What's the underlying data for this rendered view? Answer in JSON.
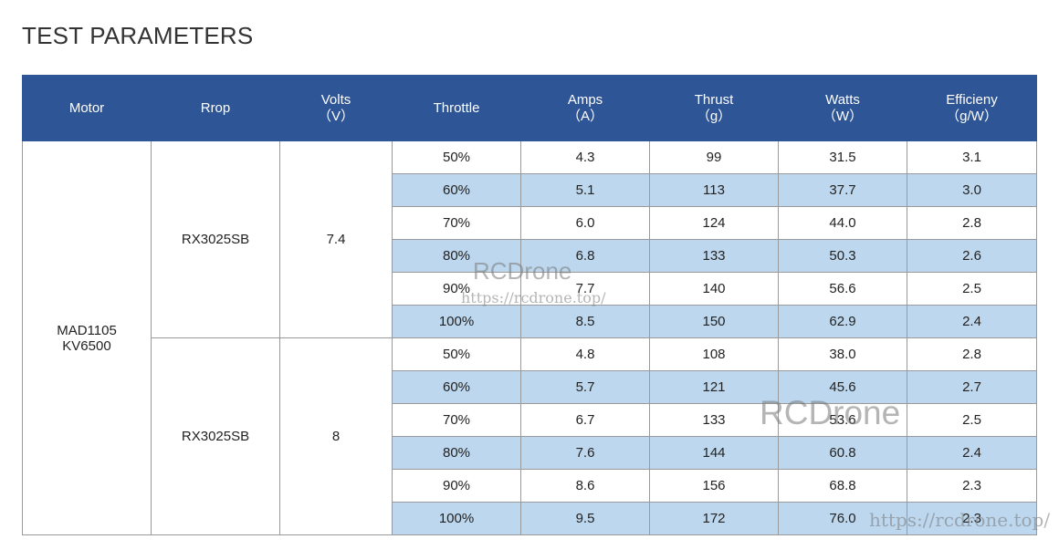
{
  "title": "TEST PARAMETERS",
  "table": {
    "header": [
      {
        "label": "Motor"
      },
      {
        "label": "Rrop"
      },
      {
        "label": "Volts",
        "unit": "（V）"
      },
      {
        "label": "Throttle"
      },
      {
        "label": "Amps",
        "unit": "（A）"
      },
      {
        "label": "Thrust",
        "unit": "（g）"
      },
      {
        "label": "Watts",
        "unit": "（W）"
      },
      {
        "label": "Efficieny",
        "unit": "（g/W）"
      }
    ],
    "motor": [
      "MAD1105",
      "KV6500"
    ],
    "groups": [
      {
        "prop": "RX3025SB",
        "volts": "7.4",
        "rows": [
          [
            "50%",
            "4.3",
            "99",
            "31.5",
            "3.1"
          ],
          [
            "60%",
            "5.1",
            "113",
            "37.7",
            "3.0"
          ],
          [
            "70%",
            "6.0",
            "124",
            "44.0",
            "2.8"
          ],
          [
            "80%",
            "6.8",
            "133",
            "50.3",
            "2.6"
          ],
          [
            "90%",
            "7.7",
            "140",
            "56.6",
            "2.5"
          ],
          [
            "100%",
            "8.5",
            "150",
            "62.9",
            "2.4"
          ]
        ]
      },
      {
        "prop": "RX3025SB",
        "volts": "8",
        "rows": [
          [
            "50%",
            "4.8",
            "108",
            "38.0",
            "2.8"
          ],
          [
            "60%",
            "5.7",
            "121",
            "45.6",
            "2.7"
          ],
          [
            "70%",
            "6.7",
            "133",
            "53.6",
            "2.5"
          ],
          [
            "80%",
            "7.6",
            "144",
            "60.8",
            "2.4"
          ],
          [
            "90%",
            "8.6",
            "156",
            "68.8",
            "2.3"
          ],
          [
            "100%",
            "9.5",
            "172",
            "76.0",
            "2.3"
          ]
        ]
      }
    ]
  },
  "watermarks": [
    {
      "text": "RCDrone",
      "kind": "logo"
    },
    {
      "text": "https://rcdrone.top/",
      "kind": "url"
    },
    {
      "text": "RCDrone",
      "kind": "logo"
    },
    {
      "text": "https://rcdrone.top/",
      "kind": "url"
    }
  ]
}
